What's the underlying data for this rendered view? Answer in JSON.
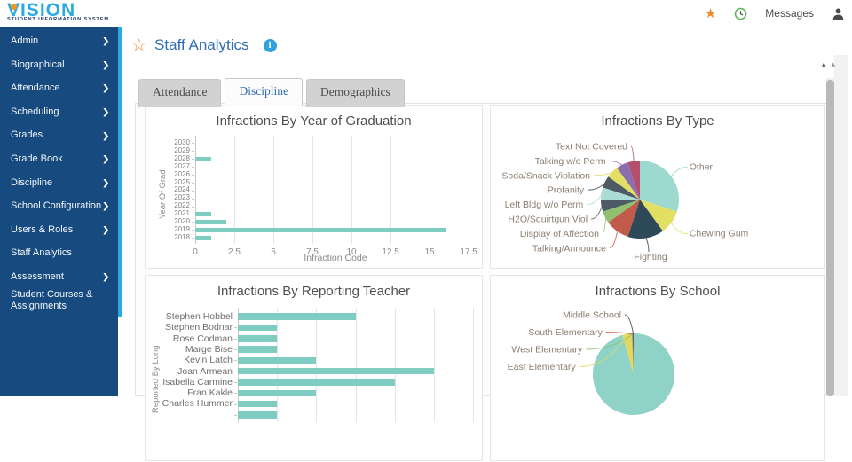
{
  "header": {
    "logo": {
      "title": "VISION",
      "subtitle": "STUDENT INFORMATION SYSTEM"
    },
    "star_glyph": "★",
    "messages_label": "Messages"
  },
  "sidebar": {
    "chevron_glyph": "❯",
    "items": [
      {
        "label": "Admin",
        "has_submenu": true
      },
      {
        "label": "Biographical",
        "has_submenu": true
      },
      {
        "label": "Attendance",
        "has_submenu": true
      },
      {
        "label": "Scheduling",
        "has_submenu": true
      },
      {
        "label": "Grades",
        "has_submenu": true
      },
      {
        "label": "Grade Book",
        "has_submenu": true
      },
      {
        "label": "Discipline",
        "has_submenu": true
      },
      {
        "label": "School Configuration",
        "has_submenu": true
      },
      {
        "label": "Users & Roles",
        "has_submenu": true
      },
      {
        "label": "Staff Analytics",
        "has_submenu": false
      },
      {
        "label": "Assessment",
        "has_submenu": true
      },
      {
        "label": "Student Courses & Assignments",
        "has_submenu": false
      }
    ]
  },
  "page": {
    "title": "Staff Analytics",
    "star_glyph": "☆",
    "info_glyph": "i",
    "tabs": [
      {
        "label": "Attendance",
        "active": false
      },
      {
        "label": "Discipline",
        "active": true
      },
      {
        "label": "Demographics",
        "active": false
      }
    ]
  },
  "colors": {
    "sidebar_blue": "#174B7F",
    "accent_cyan": "#29ABE2",
    "title_blue": "#2E6DB4",
    "star_orange": "#F0882C",
    "bar_teal": "#7FCCC3"
  },
  "chart_data": [
    {
      "type": "bar",
      "orientation": "horizontal",
      "title": "Infractions By Year of Graduation",
      "xlabel": "Infraction Code",
      "ylabel": "Year Of Grad",
      "categories": [
        "2030",
        "2029",
        "2028",
        "2027",
        "2026",
        "2025",
        "2024",
        "2023",
        "2022",
        "2021",
        "2020",
        "2019",
        "2018"
      ],
      "values": [
        0,
        0,
        1,
        0,
        0,
        0,
        0,
        0,
        0,
        1,
        2,
        16,
        1
      ],
      "xticks": [
        0,
        2.5,
        5,
        7.5,
        10,
        12.5,
        15,
        17.5
      ],
      "xlim": [
        0,
        17.95
      ],
      "bar_color": "#7FCCC3",
      "grid": true
    },
    {
      "type": "pie",
      "title": "Infractions By Type",
      "slices": [
        {
          "label": "Other",
          "value": 6,
          "color": "#9ED9D1"
        },
        {
          "label": "Chewing Gum",
          "value": 2,
          "color": "#E2DF63"
        },
        {
          "label": "Fighting",
          "value": 3,
          "color": "#2E4A5A"
        },
        {
          "label": "Talking/Announce",
          "value": 2,
          "color": "#C25B49"
        },
        {
          "label": "Display of Affection",
          "value": 1,
          "color": "#90BF70"
        },
        {
          "label": "H2O/Squirtgun Viol",
          "value": 1,
          "color": "#4E5A64"
        },
        {
          "label": "Left Bldg w/o Perm",
          "value": 1,
          "color": "#ABDCD6"
        },
        {
          "label": "Profanity",
          "value": 1,
          "color": "#4E5A64"
        },
        {
          "label": "Soda/Snack Violation",
          "value": 1,
          "color": "#E2DF63"
        },
        {
          "label": "Talking w/o Perm",
          "value": 1,
          "color": "#8B6EAE"
        },
        {
          "label": "Text Not Covered",
          "value": 1,
          "color": "#B44F6C"
        }
      ]
    },
    {
      "type": "bar",
      "orientation": "horizontal",
      "title": "Infractions By Reporting Teacher",
      "ylabel": "Reported By Long",
      "categories": [
        "Stephen Hobbel",
        "Stephen Bodnar",
        "Rose Codman",
        "Marge Bise",
        "Kevin Latch",
        "Joan Armean",
        "Isabella Carmine",
        "Fran Kakle",
        "Charles Hummer",
        ""
      ],
      "values": [
        3,
        1,
        1,
        1,
        2,
        5,
        4,
        2,
        1,
        1
      ],
      "xlim": [
        0,
        6.15
      ],
      "bar_color": "#7FCCC3",
      "grid": true
    },
    {
      "type": "pie",
      "title": "Infractions By School",
      "slices": [
        {
          "label": "",
          "value": 95.6,
          "color": "#8FD2C8"
        },
        {
          "label": "East Elementary",
          "value": 3.6,
          "color": "#E0D95E"
        },
        {
          "label": "West Elementary",
          "value": 0.33,
          "color": "#90BF70"
        },
        {
          "label": "South Elementary",
          "value": 0.28,
          "color": "#C25B49"
        },
        {
          "label": "Middle School",
          "value": 0.23,
          "color": "#3A4A58"
        }
      ]
    }
  ]
}
